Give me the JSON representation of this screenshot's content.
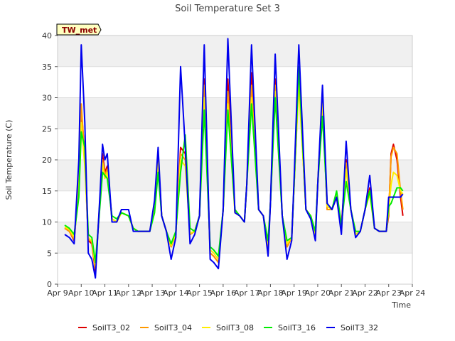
{
  "chart_data": {
    "type": "line",
    "title": "Soil Temperature Set 3",
    "xlabel": "Time",
    "ylabel": "Soil Temperature (C)",
    "badge": "TW_met",
    "ylim": [
      0,
      40
    ],
    "yticks": [
      0,
      5,
      10,
      15,
      20,
      25,
      30,
      35,
      40
    ],
    "xlim": [
      9,
      24
    ],
    "xticks": [
      9,
      10,
      11,
      12,
      13,
      14,
      15,
      16,
      17,
      18,
      19,
      20,
      21,
      22,
      23,
      24
    ],
    "xtick_labels": [
      "Apr 9",
      "Apr 10",
      "Apr 11",
      "Apr 12",
      "Apr 13",
      "Apr 14",
      "Apr 15",
      "Apr 16",
      "Apr 17",
      "Apr 18",
      "Apr 19",
      "Apr 20",
      "Apr 21",
      "Apr 22",
      "Apr 23",
      "Apr 24"
    ],
    "x_unit": "day of April",
    "grid": "horizontal bands",
    "legend_position": "bottom",
    "series": [
      {
        "name": "SoilT3_02",
        "color": "#dd0000",
        "x": [
          9.3,
          9.5,
          9.7,
          9.9,
          10.0,
          10.15,
          10.3,
          10.45,
          10.6,
          10.8,
          10.9,
          11.0,
          11.1,
          11.3,
          11.5,
          11.7,
          12.0,
          12.2,
          12.4,
          12.6,
          12.9,
          13.1,
          13.25,
          13.4,
          13.6,
          13.8,
          14.0,
          14.2,
          14.4,
          14.6,
          14.8,
          15.0,
          15.2,
          15.45,
          15.6,
          15.8,
          16.0,
          16.2,
          16.5,
          16.7,
          16.9,
          17.0,
          17.2,
          17.5,
          17.7,
          17.9,
          18.0,
          18.2,
          18.5,
          18.7,
          18.9,
          19.0,
          19.2,
          19.5,
          19.7,
          19.9,
          20.0,
          20.2,
          20.4,
          20.6,
          20.8,
          21.0,
          21.2,
          21.4,
          21.6,
          21.8,
          22.0,
          22.2,
          22.4,
          22.6,
          22.8,
          22.9,
          23.0,
          23.1,
          23.2,
          23.35,
          23.5,
          23.6
        ],
        "y": [
          9.0,
          8.5,
          7.0,
          16,
          28.0,
          21.0,
          7.0,
          6.5,
          2.0,
          14.0,
          21.0,
          18.0,
          19.0,
          10.5,
          10.0,
          11.5,
          11.0,
          9.0,
          8.5,
          8.5,
          8.5,
          12.5,
          20.5,
          11.0,
          8.5,
          6.0,
          8.0,
          22.0,
          21.0,
          8.0,
          8.5,
          11.0,
          33.0,
          5.0,
          4.5,
          3.5,
          12.0,
          33.0,
          11.5,
          11.0,
          10.0,
          16.0,
          34.0,
          12.0,
          11.0,
          6.0,
          13.0,
          33.0,
          11.0,
          6.0,
          7.5,
          16.0,
          33.0,
          12.0,
          11.0,
          8.0,
          16.0,
          30.0,
          12.0,
          12.0,
          14.0,
          9.5,
          20.0,
          12.0,
          8.0,
          8.5,
          12.0,
          15.5,
          9.0,
          8.5,
          8.5,
          8.5,
          11.0,
          21.0,
          22.5,
          20.0,
          14.0,
          11.0
        ]
      },
      {
        "name": "SoilT3_04",
        "color": "#ff9900",
        "x": [
          9.3,
          9.5,
          9.7,
          9.9,
          10.0,
          10.15,
          10.3,
          10.45,
          10.6,
          10.8,
          10.9,
          11.0,
          11.1,
          11.3,
          11.5,
          11.7,
          12.0,
          12.2,
          12.4,
          12.6,
          12.9,
          13.1,
          13.25,
          13.4,
          13.6,
          13.8,
          14.0,
          14.2,
          14.4,
          14.6,
          14.8,
          15.0,
          15.2,
          15.45,
          15.6,
          15.8,
          16.0,
          16.2,
          16.5,
          16.7,
          16.9,
          17.0,
          17.2,
          17.5,
          17.7,
          17.9,
          18.0,
          18.2,
          18.5,
          18.7,
          18.9,
          19.0,
          19.2,
          19.5,
          19.7,
          19.9,
          20.0,
          20.2,
          20.4,
          20.6,
          20.8,
          21.0,
          21.2,
          21.4,
          21.6,
          21.8,
          22.0,
          22.2,
          22.4,
          22.6,
          22.8,
          22.9,
          23.0,
          23.1,
          23.2,
          23.35,
          23.5,
          23.6
        ],
        "y": [
          9.0,
          8.5,
          7.2,
          16,
          29.0,
          20.0,
          7.2,
          6.8,
          2.5,
          14.0,
          20.0,
          17.5,
          18.5,
          10.5,
          10.0,
          11.5,
          11.0,
          9.0,
          8.5,
          8.5,
          8.5,
          12.5,
          20.0,
          11.0,
          8.5,
          6.0,
          8.0,
          21.0,
          20.0,
          8.0,
          8.5,
          11.0,
          32.0,
          5.0,
          4.5,
          3.5,
          12.0,
          31.0,
          11.5,
          11.0,
          10.0,
          16.0,
          32.0,
          12.0,
          11.0,
          6.0,
          13.0,
          32.0,
          11.0,
          6.0,
          7.5,
          16.0,
          33.0,
          12.0,
          11.0,
          8.0,
          16.0,
          30.0,
          12.0,
          12.0,
          14.0,
          9.0,
          19.5,
          12.0,
          8.0,
          8.5,
          12.0,
          15.0,
          9.0,
          8.5,
          8.5,
          8.5,
          11.5,
          20.5,
          22.0,
          21.0,
          15.0,
          12.0
        ]
      },
      {
        "name": "SoilT3_08",
        "color": "#ffee00",
        "x": [
          9.3,
          9.5,
          9.7,
          9.9,
          10.0,
          10.15,
          10.3,
          10.45,
          10.6,
          10.8,
          10.9,
          11.0,
          11.1,
          11.3,
          11.5,
          11.7,
          12.0,
          12.2,
          12.4,
          12.6,
          12.9,
          13.1,
          13.25,
          13.4,
          13.6,
          13.8,
          14.0,
          14.2,
          14.4,
          14.6,
          14.8,
          15.0,
          15.2,
          15.45,
          15.6,
          15.8,
          16.0,
          16.2,
          16.5,
          16.7,
          16.9,
          17.0,
          17.2,
          17.5,
          17.7,
          17.9,
          18.0,
          18.2,
          18.5,
          18.7,
          18.9,
          19.0,
          19.2,
          19.5,
          19.7,
          19.9,
          20.0,
          20.2,
          20.4,
          20.6,
          20.8,
          21.0,
          21.2,
          21.4,
          21.6,
          21.8,
          22.0,
          22.2,
          22.4,
          22.6,
          22.8,
          22.9,
          23.0,
          23.1,
          23.2,
          23.35,
          23.5,
          23.6
        ],
        "y": [
          9.2,
          8.8,
          7.5,
          15,
          26.0,
          19.0,
          7.5,
          7.0,
          3.0,
          13.5,
          19.5,
          17.0,
          18.0,
          10.5,
          10.0,
          11.5,
          11.0,
          9.0,
          8.5,
          8.5,
          8.5,
          12.0,
          19.5,
          11.0,
          8.5,
          6.2,
          8.2,
          20.0,
          19.0,
          8.2,
          8.5,
          11.0,
          30.0,
          5.5,
          5.0,
          4.0,
          12.0,
          29.0,
          11.5,
          11.0,
          10.0,
          16.0,
          30.0,
          12.0,
          11.0,
          6.5,
          13.0,
          31.0,
          11.0,
          6.5,
          7.5,
          16.0,
          32.0,
          12.0,
          11.0,
          8.0,
          16.0,
          29.0,
          12.5,
          12.0,
          14.5,
          9.0,
          18.5,
          12.0,
          8.0,
          8.5,
          12.0,
          14.5,
          9.0,
          8.5,
          8.5,
          8.5,
          12.0,
          16.0,
          18.0,
          17.5,
          15.0,
          14.5
        ]
      },
      {
        "name": "SoilT3_16",
        "color": "#00ee00",
        "x": [
          9.3,
          9.5,
          9.7,
          9.9,
          10.0,
          10.15,
          10.3,
          10.45,
          10.6,
          10.8,
          10.9,
          11.0,
          11.1,
          11.3,
          11.5,
          11.7,
          12.0,
          12.2,
          12.4,
          12.6,
          12.9,
          13.1,
          13.25,
          13.4,
          13.6,
          13.8,
          14.0,
          14.2,
          14.4,
          14.6,
          14.8,
          15.0,
          15.2,
          15.45,
          15.6,
          15.8,
          16.0,
          16.2,
          16.5,
          16.7,
          16.9,
          17.0,
          17.2,
          17.5,
          17.7,
          17.9,
          18.0,
          18.2,
          18.5,
          18.7,
          18.9,
          19.0,
          19.2,
          19.5,
          19.7,
          19.9,
          20.0,
          20.2,
          20.4,
          20.6,
          20.8,
          21.0,
          21.2,
          21.4,
          21.6,
          21.8,
          22.0,
          22.2,
          22.4,
          22.6,
          22.8,
          22.9,
          23.0,
          23.1,
          23.2,
          23.35,
          23.5,
          23.6
        ],
        "y": [
          9.5,
          9.0,
          8.0,
          14,
          24.5,
          22.0,
          8.0,
          7.5,
          3.5,
          13.0,
          18.0,
          17.5,
          17.0,
          11.0,
          10.5,
          11.5,
          11.0,
          9.0,
          8.5,
          8.5,
          8.5,
          11.5,
          18.0,
          11.0,
          8.5,
          6.5,
          8.5,
          18.0,
          24.0,
          9.0,
          8.5,
          11.0,
          28.0,
          6.0,
          5.5,
          4.5,
          12.0,
          28.0,
          12.0,
          11.0,
          10.0,
          16.0,
          29.0,
          12.0,
          11.0,
          7.0,
          13.0,
          30.0,
          11.0,
          7.0,
          7.5,
          16.0,
          35.0,
          12.0,
          11.0,
          8.5,
          16.0,
          27.0,
          13.0,
          12.0,
          15.0,
          9.5,
          16.5,
          12.0,
          8.5,
          8.5,
          12.0,
          15.0,
          9.0,
          8.5,
          8.5,
          8.5,
          12.5,
          13.0,
          14.0,
          15.5,
          15.5,
          15.0
        ]
      },
      {
        "name": "SoilT3_32",
        "color": "#0000ee",
        "x": [
          9.3,
          9.5,
          9.7,
          9.9,
          10.0,
          10.15,
          10.3,
          10.45,
          10.6,
          10.8,
          10.9,
          11.0,
          11.1,
          11.3,
          11.5,
          11.7,
          12.0,
          12.2,
          12.4,
          12.6,
          12.9,
          13.1,
          13.25,
          13.4,
          13.6,
          13.8,
          14.0,
          14.2,
          14.4,
          14.6,
          14.8,
          15.0,
          15.2,
          15.45,
          15.6,
          15.8,
          16.0,
          16.2,
          16.5,
          16.7,
          16.9,
          17.0,
          17.2,
          17.5,
          17.7,
          17.9,
          18.0,
          18.2,
          18.5,
          18.7,
          18.9,
          19.0,
          19.2,
          19.5,
          19.7,
          19.9,
          20.0,
          20.2,
          20.4,
          20.6,
          20.8,
          21.0,
          21.2,
          21.4,
          21.6,
          21.8,
          22.0,
          22.2,
          22.4,
          22.6,
          22.8,
          22.9,
          23.0,
          23.1,
          23.2,
          23.35,
          23.5,
          23.6
        ],
        "y": [
          8.0,
          7.5,
          6.5,
          20,
          38.5,
          26.0,
          5.0,
          4.0,
          1.0,
          15.0,
          22.5,
          20.0,
          21.0,
          10.0,
          10.0,
          12.0,
          12.0,
          8.5,
          8.5,
          8.5,
          8.5,
          13.5,
          22.0,
          11.0,
          8.5,
          4.0,
          7.5,
          35.0,
          22.0,
          6.5,
          8.0,
          11.0,
          38.5,
          4.0,
          3.5,
          2.5,
          12.0,
          39.5,
          11.5,
          11.0,
          10.0,
          16.0,
          38.5,
          12.0,
          11.0,
          4.5,
          13.0,
          37.0,
          11.0,
          4.0,
          7.0,
          17.0,
          38.5,
          12.0,
          10.5,
          7.0,
          16.0,
          32.0,
          13.0,
          12.0,
          14.0,
          8.0,
          23.0,
          12.0,
          7.5,
          8.5,
          12.0,
          17.5,
          9.0,
          8.5,
          8.5,
          8.5,
          14.0,
          14.0,
          14.0,
          14.0,
          14.0,
          14.5
        ]
      }
    ]
  }
}
